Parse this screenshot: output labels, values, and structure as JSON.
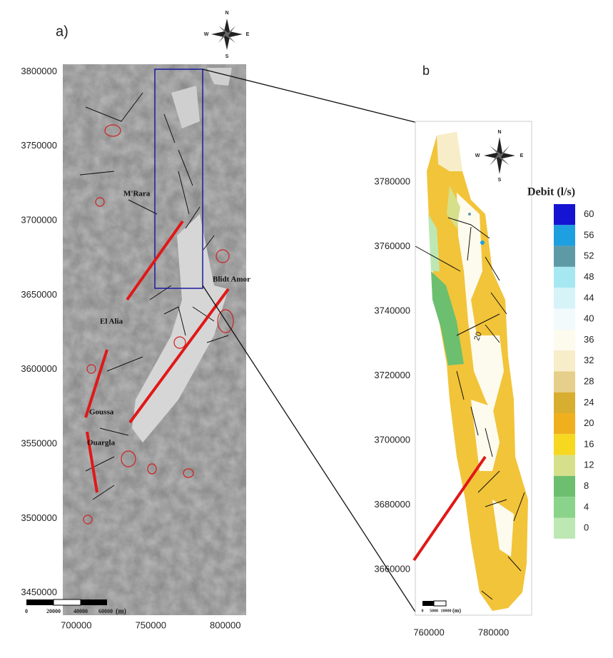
{
  "panel_a": {
    "label": "a)",
    "compass": [
      "N",
      "E",
      "S",
      "W"
    ],
    "xticks": [
      700000,
      750000,
      800000
    ],
    "xlim": [
      691000,
      814000
    ],
    "yticks": [
      3800000,
      3750000,
      3700000,
      3650000,
      3600000,
      3550000,
      3500000,
      3450000
    ],
    "ylim": [
      3435000,
      3805000
    ],
    "places": [
      "M'Rara",
      "Blidt Amor",
      "El Alia",
      "Goussa",
      "Ouargla"
    ],
    "scale_bar": {
      "labels": [
        "0",
        "20000",
        "40000",
        "60000"
      ],
      "unit": "(m)"
    }
  },
  "panel_b": {
    "label": "b",
    "compass": [
      "N",
      "E",
      "S",
      "W"
    ],
    "xticks": [
      760000,
      780000
    ],
    "xlim": [
      755800,
      791800
    ],
    "yticks": [
      3780000,
      3760000,
      3740000,
      3720000,
      3700000,
      3680000,
      3660000
    ],
    "ylim": [
      3645900,
      3798800
    ],
    "contour_label": "20",
    "scale_bar": {
      "labels": [
        "0",
        "5000",
        "10000"
      ],
      "unit": "(m)"
    },
    "legend": {
      "title": "Debit (l/s)",
      "items": [
        {
          "value": 60,
          "color": "#1414d2"
        },
        {
          "value": 56,
          "color": "#1e9fe0"
        },
        {
          "value": 52,
          "color": "#5e9aa6"
        },
        {
          "value": 48,
          "color": "#a6e8f2"
        },
        {
          "value": 44,
          "color": "#d6f3f8"
        },
        {
          "value": 40,
          "color": "#f3fafc"
        },
        {
          "value": 36,
          "color": "#fdfbee"
        },
        {
          "value": 32,
          "color": "#f7edc8"
        },
        {
          "value": 28,
          "color": "#e6cf8a"
        },
        {
          "value": 24,
          "color": "#d8ae30"
        },
        {
          "value": 20,
          "color": "#f0b01e"
        },
        {
          "value": 16,
          "color": "#f6d820"
        },
        {
          "value": 12,
          "color": "#d6e08a"
        },
        {
          "value": 8,
          "color": "#6cbf6e"
        },
        {
          "value": 4,
          "color": "#8ad38a"
        },
        {
          "value": 0,
          "color": "#bde8b4"
        }
      ]
    }
  }
}
